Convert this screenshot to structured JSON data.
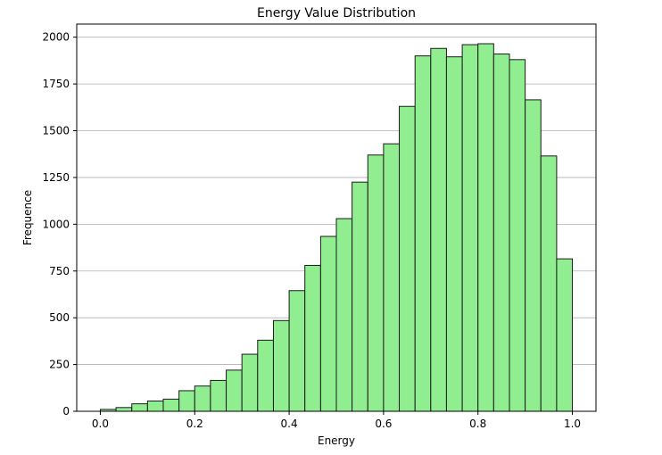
{
  "chart_data": {
    "type": "bar",
    "title": "Energy Value Distribution",
    "xlabel": "Energy",
    "ylabel": "Frequence",
    "xlim": [
      -0.05,
      1.05
    ],
    "ylim": [
      0,
      2070
    ],
    "xticks": [
      0.0,
      0.2,
      0.4,
      0.6,
      0.8,
      1.0
    ],
    "xtick_labels": [
      "0.0",
      "0.2",
      "0.4",
      "0.6",
      "0.8",
      "1.0"
    ],
    "yticks": [
      0,
      250,
      500,
      750,
      1000,
      1250,
      1500,
      1750,
      2000
    ],
    "ytick_labels": [
      "0",
      "250",
      "500",
      "750",
      "1000",
      "1250",
      "1500",
      "1750",
      "2000"
    ],
    "grid": "horizontal",
    "bar_color": "#90ee90",
    "edge_color": "#1a1a1a",
    "bins": {
      "edges": [
        0.0,
        0.0333,
        0.0667,
        0.1,
        0.1333,
        0.1667,
        0.2,
        0.2333,
        0.2667,
        0.3,
        0.3333,
        0.3667,
        0.4,
        0.4333,
        0.4667,
        0.5,
        0.5333,
        0.5667,
        0.6,
        0.6333,
        0.6667,
        0.7,
        0.7333,
        0.7667,
        0.8,
        0.8333,
        0.8667,
        0.9,
        0.9333,
        0.9667,
        1.0
      ],
      "counts": [
        10,
        20,
        40,
        55,
        65,
        110,
        135,
        165,
        220,
        305,
        380,
        485,
        645,
        780,
        935,
        1030,
        1225,
        1370,
        1430,
        1630,
        1900,
        1940,
        1895,
        1960,
        1965,
        1910,
        1880,
        1665,
        1365,
        815
      ]
    }
  }
}
